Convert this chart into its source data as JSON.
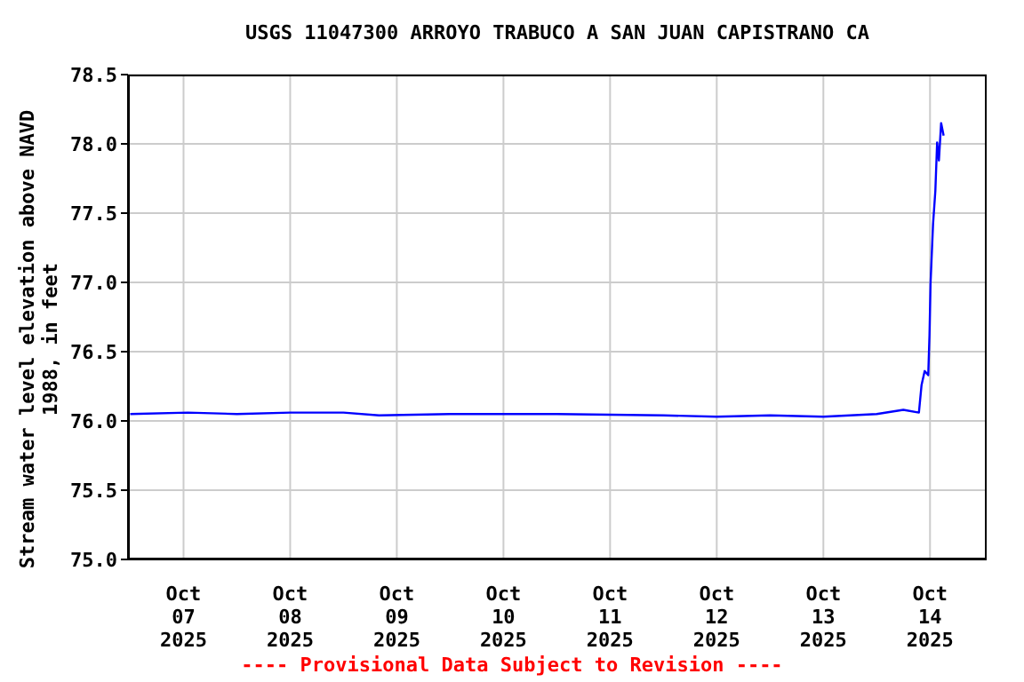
{
  "chart_data": {
    "type": "line",
    "title": "USGS 11047300 ARROYO TRABUCO A SAN JUAN CAPISTRANO CA",
    "ylabel": "Stream water level elevation above NAVD 1988, in feet",
    "annotations": [
      "---- Provisional Data Subject to Revision ----"
    ],
    "x": [
      "2025-10-06T12:00",
      "2025-10-07T01:00",
      "2025-10-07T12:00",
      "2025-10-08T00:00",
      "2025-10-08T12:00",
      "2025-10-08T20:00",
      "2025-10-09T12:00",
      "2025-10-10T12:00",
      "2025-10-11T12:00",
      "2025-10-12T00:00",
      "2025-10-12T12:00",
      "2025-10-13T00:00",
      "2025-10-13T12:00",
      "2025-10-13T18:00",
      "2025-10-13T21:30",
      "2025-10-13T22:06",
      "2025-10-13T22:48",
      "2025-10-13T23:36",
      "2025-10-13T23:53",
      "2025-10-14T00:07",
      "2025-10-14T00:41",
      "2025-10-14T01:12",
      "2025-10-14T01:36",
      "2025-10-14T02:00",
      "2025-10-14T02:30",
      "2025-10-14T03:04"
    ],
    "series": [
      {
        "color": "#0000ff",
        "values": [
          76.05,
          76.06,
          76.05,
          76.06,
          76.06,
          76.04,
          76.05,
          76.05,
          76.04,
          76.03,
          76.04,
          76.03,
          76.05,
          76.08,
          76.06,
          76.26,
          76.36,
          76.33,
          76.62,
          76.99,
          77.42,
          77.66,
          78.01,
          77.88,
          78.15,
          78.06
        ]
      }
    ],
    "xlim": [
      "2025-10-06T11:30",
      "2025-10-14T12:45"
    ],
    "xticks": [
      {
        "value": "2025-10-07",
        "label": "Oct\n07\n2025"
      },
      {
        "value": "2025-10-08",
        "label": "Oct\n08\n2025"
      },
      {
        "value": "2025-10-09",
        "label": "Oct\n09\n2025"
      },
      {
        "value": "2025-10-10",
        "label": "Oct\n10\n2025"
      },
      {
        "value": "2025-10-11",
        "label": "Oct\n11\n2025"
      },
      {
        "value": "2025-10-12",
        "label": "Oct\n12\n2025"
      },
      {
        "value": "2025-10-13",
        "label": "Oct\n13\n2025"
      },
      {
        "value": "2025-10-14",
        "label": "Oct\n14\n2025"
      }
    ],
    "ylim": [
      75.0,
      78.5
    ],
    "yticks": [
      {
        "value": 75.0,
        "label": "75.0"
      },
      {
        "value": 75.5,
        "label": "75.5"
      },
      {
        "value": 76.0,
        "label": "76.0"
      },
      {
        "value": 76.5,
        "label": "76.5"
      },
      {
        "value": 77.0,
        "label": "77.0"
      },
      {
        "value": 77.5,
        "label": "77.5"
      },
      {
        "value": 78.0,
        "label": "78.0"
      },
      {
        "value": 78.5,
        "label": "78.5"
      }
    ],
    "grid": true,
    "marker": "none",
    "line_style": "solid"
  }
}
